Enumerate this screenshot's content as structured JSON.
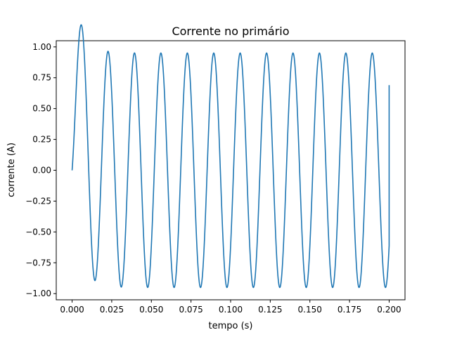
{
  "chart_data": {
    "type": "line",
    "title": "Corrente no primário",
    "xlabel": "tempo (s)",
    "ylabel": "corrente (A)",
    "xlim": [
      -0.01,
      0.21
    ],
    "ylim": [
      -1.05,
      1.05
    ],
    "xticks": [
      "0.000",
      "0.025",
      "0.050",
      "0.075",
      "0.100",
      "0.125",
      "0.150",
      "0.175",
      "0.200"
    ],
    "yticks": [
      "−1.00",
      "−0.75",
      "−0.50",
      "−0.25",
      "0.00",
      "0.25",
      "0.50",
      "0.75",
      "1.00"
    ],
    "grid": false,
    "series": [
      {
        "color": "#1f77b4",
        "x_range": [
          0,
          0.2
        ],
        "frequency_hz": 60,
        "amplitude": 0.95,
        "phase_deg": -40,
        "dc_offset_start": 0.61,
        "dc_decay_time_s": 0.006,
        "start_value": 0.0,
        "end_value": 0.69
      }
    ]
  }
}
